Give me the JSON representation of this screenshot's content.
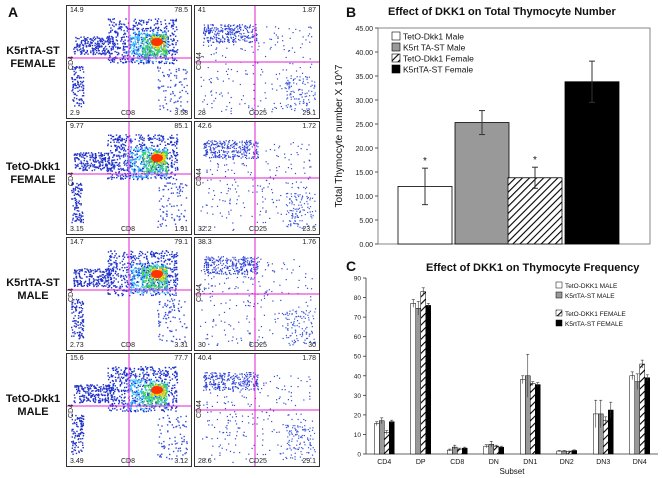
{
  "panel_labels": {
    "a": "A",
    "b": "B",
    "c": "C"
  },
  "flow": {
    "x_label_left": "CD8",
    "y_label_left": "CD4",
    "x_label_right": "CD25",
    "y_label_right": "CD44",
    "rows": [
      {
        "label": "K5rtTA-ST\nFEMALE",
        "left": {
          "tl": "14.9",
          "tr": "78.5",
          "bl": "2.9",
          "br": "3.58"
        },
        "right": {
          "tl": "41",
          "tr": "1.87",
          "bl": "28",
          "br": "29.1"
        }
      },
      {
        "label": "TetO-Dkk1\nFEMALE",
        "left": {
          "tl": "9.77",
          "tr": "85.1",
          "bl": "3.15",
          "br": "1.91"
        },
        "right": {
          "tl": "42.6",
          "tr": "1.72",
          "bl": "32.2",
          "br": "23.5"
        }
      },
      {
        "label": "K5rtTA-ST\nMALE",
        "left": {
          "tl": "14.7",
          "tr": "79.1",
          "bl": "2.73",
          "br": "3.31"
        },
        "right": {
          "tl": "38.3",
          "tr": "1.76",
          "bl": "30",
          "br": "30"
        }
      },
      {
        "label": "TetO-Dkk1\nMALE",
        "left": {
          "tl": "15.6",
          "tr": "77.7",
          "bl": "3.49",
          "br": "3.12"
        },
        "right": {
          "tl": "40.4",
          "tr": "1.78",
          "bl": "28.6",
          "br": "29.1"
        }
      }
    ]
  },
  "chart_data": [
    {
      "type": "bar",
      "title": "Effect of DKK1 on Total Thymocyte Number",
      "ylabel": "Total Thymocyte number X 10^7",
      "xlabel": "",
      "ylim": [
        0,
        45
      ],
      "yticks": [
        "0.00",
        "5.00",
        "10.00",
        "15.00",
        "20.00",
        "25.00",
        "30.00",
        "35.00",
        "40.00",
        "45.00"
      ],
      "legend": [
        "TetO-Dkk1 Male",
        "K5rt TA-ST Male",
        "TetO-Dkk1 Female",
        "K5rtTA-ST Female"
      ],
      "legend_position": "top-left",
      "values": [
        12.0,
        25.3,
        13.8,
        33.8
      ],
      "errors": [
        3.8,
        2.5,
        2.2,
        4.3
      ],
      "annotations": [
        "*",
        "",
        "*",
        ""
      ],
      "colors": [
        "#ffffff",
        "#999999",
        "hatch",
        "#000000"
      ]
    },
    {
      "type": "bar",
      "title": "Effect of DKK1 on Thymocyte Frequency",
      "ylabel": "Frequency",
      "xlabel": "Subset",
      "ylim": [
        0,
        90
      ],
      "yticks": [
        "0",
        "10",
        "20",
        "30",
        "40",
        "50",
        "60",
        "70",
        "80",
        "90"
      ],
      "categories": [
        "CD4",
        "DP",
        "CD8",
        "DN",
        "DN1",
        "DN2",
        "DN3",
        "DN4"
      ],
      "legend": [
        "TetO-DKK1 MALE",
        "K5rtTA-ST MALE",
        "TetO-DKK1 FEMALE",
        "K5rtTA-ST FEMALE"
      ],
      "legend_position": "top-right",
      "series": [
        {
          "name": "TetO-DKK1 MALE",
          "values": [
            15.5,
            77,
            2,
            4,
            38,
            1.5,
            20.5,
            40
          ],
          "errors": [
            1,
            2,
            0.5,
            0.8,
            2,
            0.3,
            7,
            2
          ]
        },
        {
          "name": "K5rtTA-ST MALE",
          "values": [
            17,
            74.5,
            3.5,
            5,
            40,
            1.5,
            20.5,
            37
          ],
          "errors": [
            1.5,
            3.5,
            1,
            1.5,
            11,
            0.3,
            7,
            4
          ]
        },
        {
          "name": "TetO-DKK1 FEMALE",
          "values": [
            11,
            83,
            2.5,
            4,
            36,
            1.3,
            17,
            46
          ],
          "errors": [
            1,
            2,
            0.5,
            0.5,
            1,
            0.2,
            2,
            2
          ]
        },
        {
          "name": "K5rtTA-ST FEMALE",
          "values": [
            16.5,
            76,
            3,
            3.5,
            35.5,
            1.8,
            22.5,
            39
          ],
          "errors": [
            0.8,
            1,
            0.5,
            0.5,
            1,
            0.3,
            4,
            1.5
          ]
        }
      ]
    }
  ]
}
